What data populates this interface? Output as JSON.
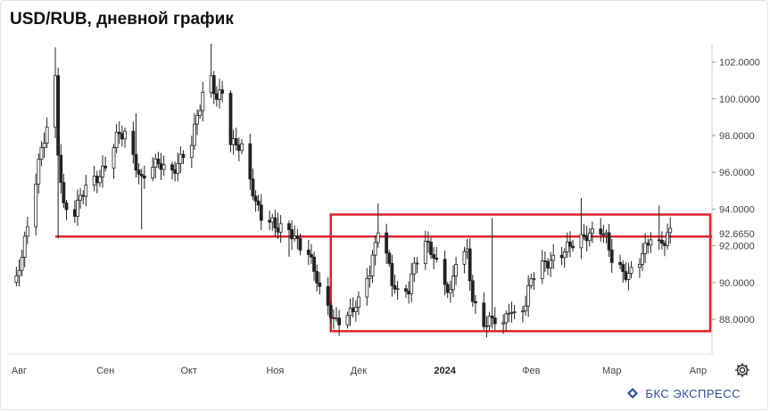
{
  "title": "USD/RUB, дневной график",
  "brand": {
    "text": "БКС ЭКСПРЕСС",
    "color": "#2b4f9c"
  },
  "settings_icon": "gear-icon",
  "colors": {
    "candle": "#222222",
    "annotation": "#e0242b",
    "grid": "#dddddd"
  },
  "chart_data": {
    "type": "candlestick",
    "instrument": "USD/RUB",
    "timeframe": "дневной",
    "y_axis_ticks": [
      "102.0000",
      "100.0000",
      "98.0000",
      "96.0000",
      "94.0000",
      "92.0000",
      "90.0000",
      "88.0000"
    ],
    "y_tick_values": [
      102,
      100,
      98,
      96,
      94,
      92,
      90,
      88
    ],
    "ylim": [
      86.3,
      103.0
    ],
    "x_axis_ticks": [
      "Авг",
      "Сен",
      "Окт",
      "Ноя",
      "Дек",
      "2024",
      "Фев",
      "Мар",
      "Апр"
    ],
    "current_price_label": "92.6650",
    "current_price": 92.665,
    "annotations": {
      "horizontal_line": {
        "value": 92.5,
        "from": "2023-08-14",
        "to": "end"
      },
      "range_box": {
        "low": 87.35,
        "high": 93.7,
        "from": "2023-11-21",
        "to": "2024-03-31"
      }
    },
    "close_points": [
      [
        "2023-07-31",
        90.0
      ],
      [
        "2023-08-04",
        93.2
      ],
      [
        "2023-08-08",
        96.5
      ],
      [
        "2023-08-11",
        98.3
      ],
      [
        "2023-08-14",
        101.0
      ],
      [
        "2023-08-15",
        97.2
      ],
      [
        "2023-08-17",
        94.2
      ],
      [
        "2023-08-21",
        93.8
      ],
      [
        "2023-08-23",
        94.5
      ],
      [
        "2023-08-25",
        95.2
      ],
      [
        "2023-08-29",
        95.8
      ],
      [
        "2023-09-01",
        96.3
      ],
      [
        "2023-09-05",
        97.8
      ],
      [
        "2023-09-08",
        98.2
      ],
      [
        "2023-09-12",
        96.5
      ],
      [
        "2023-09-14",
        95.5
      ],
      [
        "2023-09-18",
        96.3
      ],
      [
        "2023-09-21",
        96.5
      ],
      [
        "2023-09-25",
        96.1
      ],
      [
        "2023-09-28",
        96.6
      ],
      [
        "2023-10-02",
        97.5
      ],
      [
        "2023-10-04",
        99.2
      ],
      [
        "2023-10-06",
        100.3
      ],
      [
        "2023-10-09",
        101.2
      ],
      [
        "2023-10-11",
        99.8
      ],
      [
        "2023-10-13",
        100.4
      ],
      [
        "2023-10-16",
        97.6
      ],
      [
        "2023-10-18",
        97.7
      ],
      [
        "2023-10-20",
        97.4
      ],
      [
        "2023-10-23",
        95.5
      ],
      [
        "2023-10-25",
        94.2
      ],
      [
        "2023-10-27",
        93.6
      ],
      [
        "2023-10-31",
        93.4
      ],
      [
        "2023-11-02",
        93.0
      ],
      [
        "2023-11-06",
        92.7
      ],
      [
        "2023-11-08",
        92.3
      ],
      [
        "2023-11-10",
        92.1
      ],
      [
        "2023-11-13",
        91.7
      ],
      [
        "2023-11-15",
        90.8
      ],
      [
        "2023-11-17",
        89.4
      ],
      [
        "2023-11-20",
        88.6
      ],
      [
        "2023-11-22",
        87.9
      ],
      [
        "2023-11-24",
        88.1
      ],
      [
        "2023-11-28",
        88.4
      ],
      [
        "2023-12-01",
        88.8
      ],
      [
        "2023-12-05",
        90.6
      ],
      [
        "2023-12-07",
        92.2
      ],
      [
        "2023-12-08",
        93.1
      ],
      [
        "2023-12-11",
        91.6
      ],
      [
        "2023-12-13",
        89.9
      ],
      [
        "2023-12-15",
        89.3
      ],
      [
        "2023-12-19",
        89.7
      ],
      [
        "2023-12-21",
        91.1
      ],
      [
        "2023-12-25",
        92.1
      ],
      [
        "2023-12-27",
        91.6
      ],
      [
        "2024-01-03",
        89.5
      ],
      [
        "2024-01-05",
        91.2
      ],
      [
        "2024-01-09",
        91.5
      ],
      [
        "2024-01-11",
        89.0
      ],
      [
        "2024-01-15",
        87.9
      ],
      [
        "2024-01-18",
        88.0
      ],
      [
        "2024-01-22",
        87.5
      ],
      [
        "2024-01-24",
        88.6
      ],
      [
        "2024-01-26",
        88.3
      ],
      [
        "2024-01-30",
        88.9
      ],
      [
        "2024-02-01",
        90.1
      ],
      [
        "2024-02-05",
        90.9
      ],
      [
        "2024-02-08",
        91.3
      ],
      [
        "2024-02-12",
        91.6
      ],
      [
        "2024-02-15",
        91.9
      ],
      [
        "2024-02-19",
        92.4
      ],
      [
        "2024-02-21",
        92.7
      ],
      [
        "2024-02-26",
        92.8
      ],
      [
        "2024-02-28",
        92.3
      ],
      [
        "2024-03-01",
        91.3
      ],
      [
        "2024-03-05",
        90.7
      ],
      [
        "2024-03-07",
        90.4
      ],
      [
        "2024-03-11",
        91.1
      ],
      [
        "2024-03-13",
        91.8
      ],
      [
        "2024-03-15",
        92.6
      ],
      [
        "2024-03-18",
        92.2
      ],
      [
        "2024-03-20",
        92.3
      ],
      [
        "2024-03-22",
        92.665
      ]
    ]
  }
}
